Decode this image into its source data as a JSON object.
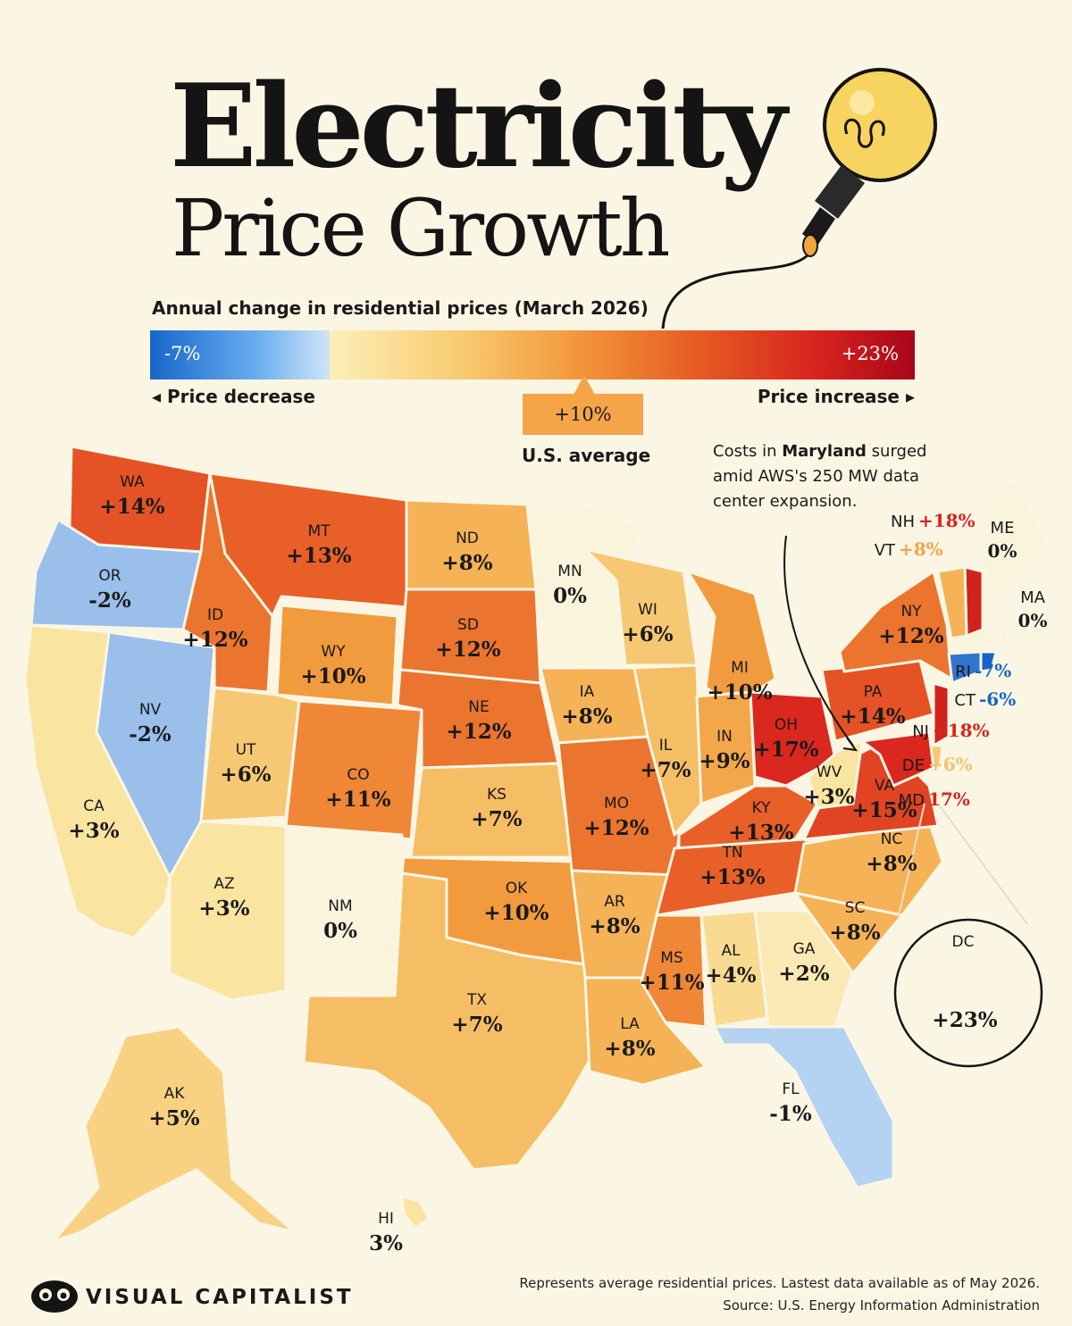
{
  "title_line1": "Electricity",
  "title_line2": "Price Growth",
  "subtitle": "Annual change in residential prices (March 2026)",
  "legend": {
    "min_label": "-7%",
    "max_label": "+23%",
    "decrease_label": "Price decrease",
    "increase_label": "Price increase",
    "average_value": "+10%",
    "average_label": "U.S. average"
  },
  "annotation": {
    "pre": "Costs in ",
    "bold": "Maryland",
    "post": " surged amid AWS's 250 MW data center expansion."
  },
  "states": [
    {
      "code": "WA",
      "label": "+14%",
      "value": 14
    },
    {
      "code": "OR",
      "label": "-2%",
      "value": -2
    },
    {
      "code": "CA",
      "label": "+3%",
      "value": 3
    },
    {
      "code": "NV",
      "label": "-2%",
      "value": -2
    },
    {
      "code": "ID",
      "label": "+12%",
      "value": 12
    },
    {
      "code": "MT",
      "label": "+13%",
      "value": 13
    },
    {
      "code": "WY",
      "label": "+10%",
      "value": 10
    },
    {
      "code": "UT",
      "label": "+6%",
      "value": 6
    },
    {
      "code": "AZ",
      "label": "+3%",
      "value": 3
    },
    {
      "code": "CO",
      "label": "+11%",
      "value": 11
    },
    {
      "code": "NM",
      "label": "0%",
      "value": 0
    },
    {
      "code": "ND",
      "label": "+8%",
      "value": 8
    },
    {
      "code": "SD",
      "label": "+12%",
      "value": 12
    },
    {
      "code": "NE",
      "label": "+12%",
      "value": 12
    },
    {
      "code": "KS",
      "label": "+7%",
      "value": 7
    },
    {
      "code": "OK",
      "label": "+10%",
      "value": 10
    },
    {
      "code": "TX",
      "label": "+7%",
      "value": 7
    },
    {
      "code": "MN",
      "label": "0%",
      "value": 0
    },
    {
      "code": "IA",
      "label": "+8%",
      "value": 8
    },
    {
      "code": "MO",
      "label": "+12%",
      "value": 12
    },
    {
      "code": "AR",
      "label": "+8%",
      "value": 8
    },
    {
      "code": "LA",
      "label": "+8%",
      "value": 8
    },
    {
      "code": "WI",
      "label": "+6%",
      "value": 6
    },
    {
      "code": "IL",
      "label": "+7%",
      "value": 7
    },
    {
      "code": "MI",
      "label": "+10%",
      "value": 10
    },
    {
      "code": "IN",
      "label": "+9%",
      "value": 9
    },
    {
      "code": "OH",
      "label": "+17%",
      "value": 17
    },
    {
      "code": "KY",
      "label": "+13%",
      "value": 13
    },
    {
      "code": "TN",
      "label": "+13%",
      "value": 13
    },
    {
      "code": "MS",
      "label": "+11%",
      "value": 11
    },
    {
      "code": "AL",
      "label": "+4%",
      "value": 4
    },
    {
      "code": "GA",
      "label": "+2%",
      "value": 2
    },
    {
      "code": "FL",
      "label": "-1%",
      "value": -1
    },
    {
      "code": "SC",
      "label": "+8%",
      "value": 8
    },
    {
      "code": "NC",
      "label": "+8%",
      "value": 8
    },
    {
      "code": "VA",
      "label": "+15%",
      "value": 15
    },
    {
      "code": "WV",
      "label": "+3%",
      "value": 3
    },
    {
      "code": "PA",
      "label": "+14%",
      "value": 14
    },
    {
      "code": "NY",
      "label": "+12%",
      "value": 12
    },
    {
      "code": "ME",
      "label": "0%",
      "value": 0
    },
    {
      "code": "MA",
      "label": "0%",
      "value": 0
    },
    {
      "code": "NH",
      "label": "+18%",
      "value": 18
    },
    {
      "code": "VT",
      "label": "+8%",
      "value": 8
    },
    {
      "code": "RI",
      "label": "-7%",
      "value": -7
    },
    {
      "code": "CT",
      "label": "-6%",
      "value": -6
    },
    {
      "code": "NJ",
      "label": "+18%",
      "value": 18
    },
    {
      "code": "DE",
      "label": "+6%",
      "value": 6
    },
    {
      "code": "MD",
      "label": "17%",
      "value": 17
    },
    {
      "code": "DC",
      "label": "+23%",
      "value": 23
    },
    {
      "code": "AK",
      "label": "+5%",
      "value": 5
    },
    {
      "code": "HI",
      "label": "3%",
      "value": 3
    }
  ],
  "footer": {
    "brand": "VISUAL CAPITALIST",
    "note": "Represents average residential prices. Lastest data available as of May 2026.",
    "source": "Source: U.S. Energy Information Administration"
  }
}
